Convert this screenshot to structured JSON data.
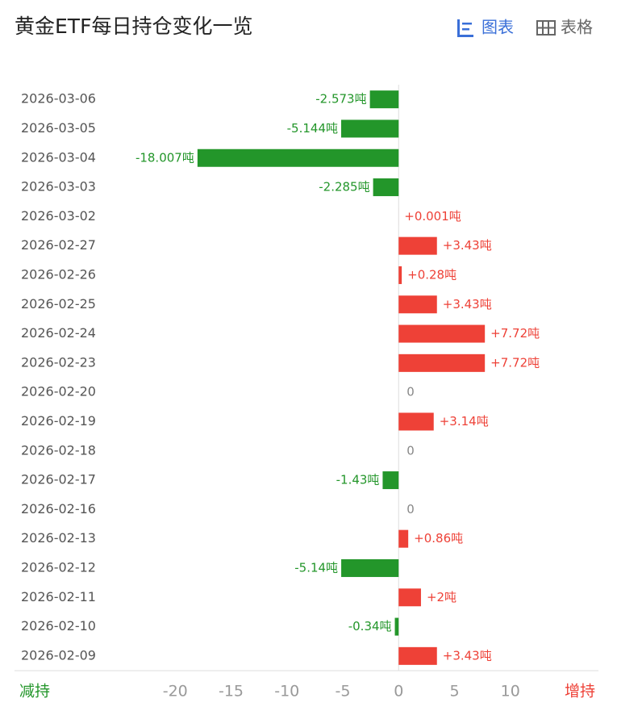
{
  "chart_data": {
    "type": "bar",
    "orientation": "horizontal",
    "title": "黄金ETF每日持仓变化一览",
    "tabs": [
      "图表",
      "表格"
    ],
    "decrease_label": "减持",
    "increase_label": "增持",
    "categories": [
      "2026-03-06",
      "2026-03-05",
      "2026-03-04",
      "2026-03-03",
      "2026-03-02",
      "2026-02-27",
      "2026-02-26",
      "2026-02-25",
      "2026-02-24",
      "2026-02-23",
      "2026-02-20",
      "2026-02-19",
      "2026-02-18",
      "2026-02-17",
      "2026-02-16",
      "2026-02-13",
      "2026-02-12",
      "2026-02-11",
      "2026-02-10",
      "2026-02-09"
    ],
    "values": [
      -2.573,
      -5.144,
      -18.007,
      -2.285,
      0.001,
      3.43,
      0.28,
      3.43,
      7.72,
      7.72,
      0,
      3.14,
      0,
      -1.43,
      0,
      0.86,
      -5.14,
      2,
      -0.34,
      3.43
    ],
    "value_labels": [
      "-2.573吨",
      "-5.144吨",
      "-18.007吨",
      "-2.285吨",
      "+0.001吨",
      "+3.43吨",
      "+0.28吨",
      "+3.43吨",
      "+7.72吨",
      "+7.72吨",
      "0",
      "+3.14吨",
      "0",
      "-1.43吨",
      "0",
      "+0.86吨",
      "-5.14吨",
      "+2吨",
      "-0.34吨",
      "+3.43吨"
    ],
    "colors": {
      "increase": "#ee4137",
      "decrease": "#23962a",
      "zero": "#888888"
    },
    "xlim": [
      -25,
      15
    ],
    "xticks": [
      -20,
      -15,
      -10,
      -5,
      0,
      5,
      10
    ]
  }
}
